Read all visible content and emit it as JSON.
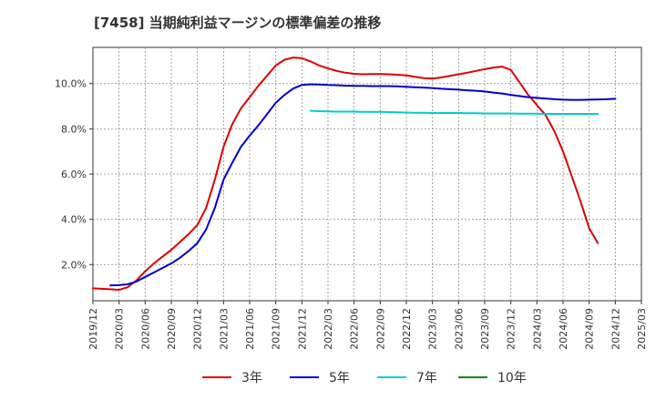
{
  "chart_data": {
    "type": "line",
    "title": "[7458]  当期純利益マージンの標準偏差の推移",
    "xlabel": "",
    "ylabel": "",
    "ylim": [
      0.4,
      11.6
    ],
    "y_ticks": [
      2.0,
      4.0,
      6.0,
      8.0,
      10.0
    ],
    "y_tick_labels": [
      "2.0%",
      "4.0%",
      "6.0%",
      "8.0%",
      "10.0%"
    ],
    "x_tick_labels": [
      "2019/12",
      "2020/03",
      "2020/06",
      "2020/09",
      "2020/12",
      "2021/03",
      "2021/06",
      "2021/09",
      "2021/12",
      "2022/03",
      "2022/06",
      "2022/09",
      "2022/12",
      "2023/03",
      "2023/06",
      "2023/09",
      "2023/12",
      "2024/03",
      "2024/06",
      "2024/09",
      "2024/12",
      "2025/03"
    ],
    "grid": true,
    "legend_position": "bottom",
    "series": [
      {
        "name": "3年",
        "color": "#dd0000",
        "start_index": 0,
        "values": [
          0.95,
          0.93,
          0.91,
          0.88,
          1.0,
          1.3,
          1.7,
          2.05,
          2.35,
          2.65,
          3.0,
          3.35,
          3.75,
          4.5,
          5.75,
          7.2,
          8.2,
          8.9,
          9.4,
          9.9,
          10.35,
          10.8,
          11.05,
          11.15,
          11.12,
          10.98,
          10.8,
          10.67,
          10.56,
          10.48,
          10.43,
          10.41,
          10.42,
          10.42,
          10.41,
          10.39,
          10.36,
          10.3,
          10.24,
          10.22,
          10.27,
          10.34,
          10.41,
          10.48,
          10.56,
          10.64,
          10.71,
          10.75,
          10.6,
          10.05,
          9.5,
          9.05,
          8.6,
          7.9,
          7.0,
          5.9,
          4.8,
          3.6,
          2.95
        ]
      },
      {
        "name": "5年",
        "color": "#0000cc",
        "start_index": 2,
        "values": [
          1.08,
          1.09,
          1.13,
          1.25,
          1.45,
          1.65,
          1.85,
          2.05,
          2.3,
          2.6,
          2.95,
          3.55,
          4.5,
          5.75,
          6.5,
          7.2,
          7.7,
          8.15,
          8.65,
          9.15,
          9.5,
          9.78,
          9.94,
          9.97,
          9.96,
          9.94,
          9.93,
          9.91,
          9.9,
          9.9,
          9.89,
          9.89,
          9.89,
          9.88,
          9.86,
          9.84,
          9.82,
          9.8,
          9.77,
          9.75,
          9.73,
          9.7,
          9.68,
          9.65,
          9.6,
          9.56,
          9.5,
          9.45,
          9.4,
          9.37,
          9.34,
          9.31,
          9.29,
          9.28,
          9.28,
          9.29,
          9.3,
          9.31,
          9.33
        ]
      },
      {
        "name": "7年",
        "color": "#00cccc",
        "start_index": 25,
        "values": [
          8.8,
          8.78,
          8.77,
          8.76,
          8.76,
          8.76,
          8.75,
          8.75,
          8.75,
          8.74,
          8.73,
          8.72,
          8.71,
          8.71,
          8.7,
          8.7,
          8.7,
          8.7,
          8.69,
          8.69,
          8.68,
          8.68,
          8.68,
          8.68,
          8.67,
          8.67,
          8.67,
          8.66,
          8.66,
          8.66,
          8.66,
          8.66,
          8.66,
          8.66
        ]
      },
      {
        "name": "10年",
        "color": "#008800",
        "start_index": 0,
        "values": []
      }
    ]
  }
}
